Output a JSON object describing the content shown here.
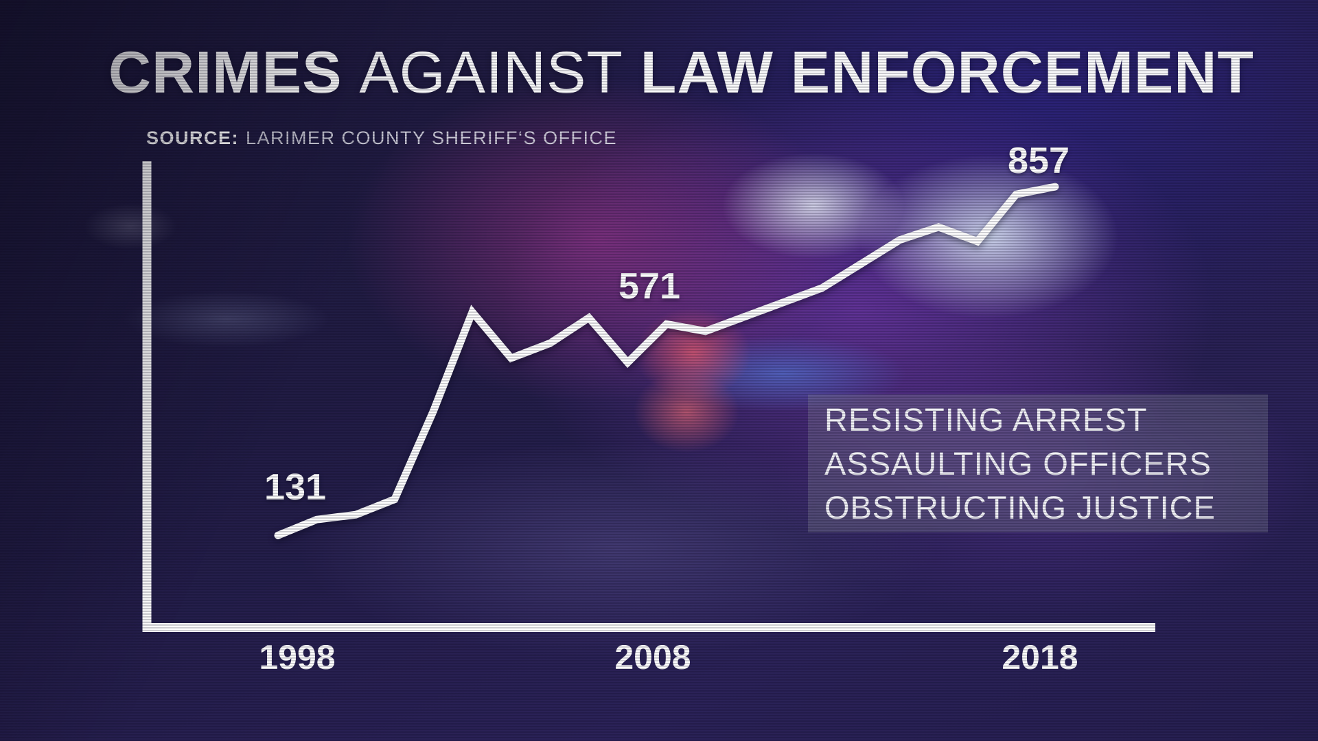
{
  "header": {
    "title_emphasis": "CRIMES",
    "title_light": "AGAINST",
    "title_bold": "LAW ENFORCEMENT",
    "source_label": "SOURCE:",
    "source_text": "LARIMER COUNTY SHERIFF‘S OFFICE"
  },
  "annotation_box": {
    "lines": [
      "RESISTING ARREST",
      "ASSAULTING OFFICERS",
      "OBSTRUCTING JUSTICE"
    ]
  },
  "chart_data": {
    "type": "line",
    "title": "Crimes against law enforcement",
    "source": "Larimer County Sheriff's Office",
    "x": [
      1998,
      1999,
      2000,
      2001,
      2002,
      2003,
      2004,
      2005,
      2006,
      2007,
      2008,
      2009,
      2010,
      2011,
      2012,
      2013,
      2014,
      2015,
      2016,
      2017,
      2018
    ],
    "values": [
      131,
      164,
      174,
      206,
      390,
      596,
      500,
      531,
      584,
      491,
      571,
      556,
      586,
      616,
      646,
      696,
      746,
      773,
      743,
      841,
      857
    ],
    "labeled_points": [
      {
        "x": 1998,
        "value": 131,
        "label": "131"
      },
      {
        "x": 2008,
        "value": 571,
        "label": "571"
      },
      {
        "x": 2018,
        "value": 857,
        "label": "857"
      }
    ],
    "x_tick_labels": [
      "1998",
      "2008",
      "2018"
    ],
    "xlabel": "",
    "ylabel": "",
    "ylim": [
      0,
      920
    ],
    "grid": false,
    "legend": null,
    "line_color": "#ffffff"
  },
  "colors": {
    "line": "#ffffff",
    "background_base": "#221c48",
    "glow_purple": "#843ec0",
    "glow_magenta": "#c03ca2",
    "glow_blue": "#5270cd",
    "glow_red": "#e25c6c",
    "flare_cyan": "#e4f2ff",
    "annotation_box_bg": "rgba(148,152,168,0.30)"
  }
}
